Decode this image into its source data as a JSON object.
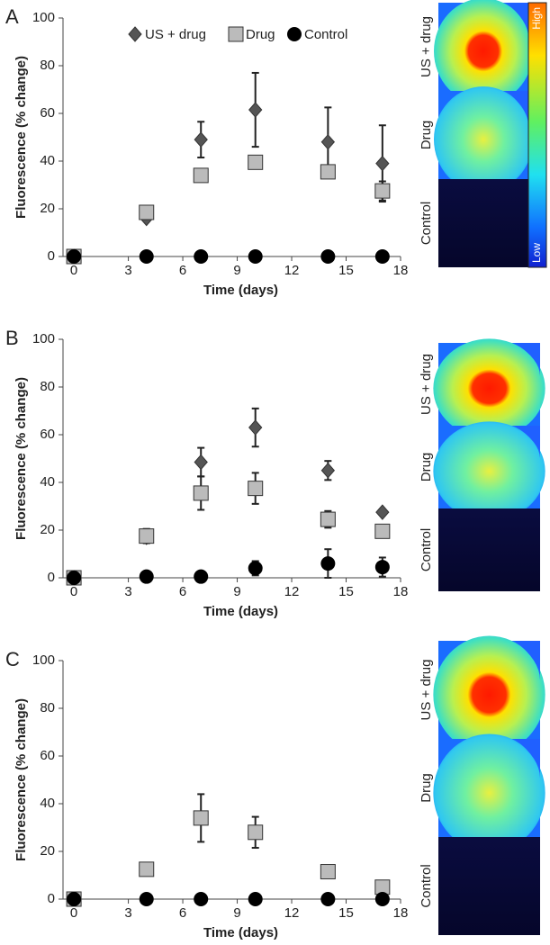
{
  "chart_data": [
    {
      "type": "scatter",
      "panel": "A",
      "x_label": "Time (days)",
      "y_label": "Fluorescence (% change)",
      "x": [
        0,
        4,
        7,
        10,
        14,
        17
      ],
      "xlim": [
        -0.6,
        18
      ],
      "xticks": [
        0,
        3,
        6,
        9,
        12,
        15,
        18
      ],
      "ylim": [
        0,
        100
      ],
      "yticks": [
        0,
        20,
        40,
        60,
        80,
        100
      ],
      "legend": true,
      "series": [
        {
          "name": "US + drug",
          "marker": "diamond",
          "color": "#555555",
          "values": [
            0,
            16,
            49,
            61.5,
            48,
            39
          ],
          "errors": [
            0,
            1,
            7.5,
            15.5,
            14.5,
            16
          ]
        },
        {
          "name": "Drug",
          "marker": "square",
          "color": "#bbbbbb",
          "values": [
            0,
            18.5,
            34,
            39.5,
            35.5,
            27.5
          ],
          "errors": [
            0,
            1,
            1,
            1,
            1,
            4
          ]
        },
        {
          "name": "Control",
          "marker": "circle",
          "color": "#000000",
          "values": [
            0,
            0,
            0,
            0,
            0,
            0
          ],
          "errors": [
            0,
            0,
            0,
            0,
            0,
            0
          ]
        }
      ],
      "image_labels": [
        "US + drug",
        "Drug",
        "Control"
      ],
      "colorbar_labels": [
        "High",
        "Low"
      ]
    },
    {
      "type": "scatter",
      "panel": "B",
      "x_label": "Time (days)",
      "y_label": "Fluorescence (% change)",
      "x": [
        0,
        4,
        7,
        10,
        14,
        17
      ],
      "xlim": [
        -0.6,
        18
      ],
      "xticks": [
        0,
        3,
        6,
        9,
        12,
        15,
        18
      ],
      "ylim": [
        0,
        100
      ],
      "yticks": [
        0,
        20,
        40,
        60,
        80,
        100
      ],
      "legend": false,
      "series": [
        {
          "marker": "diamond",
          "color": "#555555",
          "values": [
            0,
            17,
            48.5,
            63,
            45,
            27.5
          ],
          "errors": [
            0,
            1,
            6,
            8,
            4,
            1
          ]
        },
        {
          "marker": "square",
          "color": "#bbbbbb",
          "values": [
            0,
            17.5,
            35.5,
            37.5,
            24.5,
            19.5
          ],
          "errors": [
            0,
            3,
            7,
            6.5,
            3.5,
            1
          ]
        },
        {
          "marker": "circle",
          "color": "#000000",
          "values": [
            0,
            0.5,
            0.5,
            4,
            6,
            4.5
          ],
          "errors": [
            0,
            0,
            0,
            3,
            6,
            4
          ]
        }
      ],
      "image_labels": [
        "US + drug",
        "Drug",
        "Control"
      ]
    },
    {
      "type": "scatter",
      "panel": "C",
      "x_label": "Time (days)",
      "y_label": "Fluorescence (% change)",
      "x": [
        0,
        4,
        7,
        10,
        14,
        17
      ],
      "xlim": [
        -0.6,
        18
      ],
      "xticks": [
        0,
        3,
        6,
        9,
        12,
        15,
        18
      ],
      "ylim": [
        0,
        100
      ],
      "yticks": [
        0,
        20,
        40,
        60,
        80,
        100
      ],
      "legend": false,
      "series": [
        {
          "marker": "square",
          "color": "#bbbbbb",
          "values": [
            0,
            12.5,
            34,
            28,
            11.5,
            5
          ],
          "errors": [
            0,
            1,
            10,
            6.5,
            2,
            2
          ]
        },
        {
          "marker": "circle",
          "color": "#000000",
          "values": [
            0,
            0,
            0,
            0,
            0,
            0
          ],
          "errors": [
            0,
            0,
            0,
            0,
            0,
            0
          ]
        }
      ],
      "image_labels": [
        "US + drug",
        "Drug",
        "Control"
      ]
    }
  ]
}
